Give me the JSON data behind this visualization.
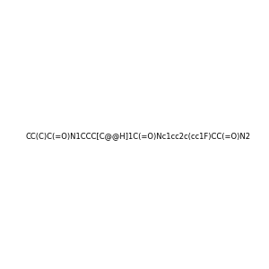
{
  "smiles": "CC(C)C(=O)N1CCC[C@@H]1C(=O)Nc1cc2c(cc1F)CC(=O)N2",
  "image_size": 300,
  "background_color": "#e8e8e8",
  "title": ""
}
